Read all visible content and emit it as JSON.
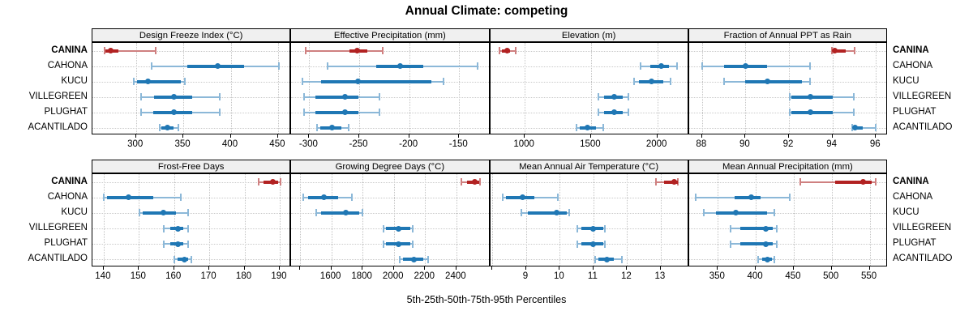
{
  "title": "Annual Climate: competing",
  "axis_caption": "5th-25th-50th-75th-95th Percentiles",
  "colors": {
    "highlight": "#b22222",
    "highlight_light": "#cf8080",
    "normal": "#1f77b4",
    "normal_light": "#8cb8d8",
    "strip_bg": "#f0f0f0",
    "panel_border": "#000000",
    "grid": "#c4c4c4"
  },
  "chart_data": {
    "type": "dotplot-percentiles",
    "title": "Annual Climate: competing",
    "xlabel": "5th-25th-50th-75th-95th Percentiles",
    "percentiles": [
      5,
      25,
      50,
      75,
      95
    ],
    "rows": [
      "CANINA",
      "CAHONA",
      "KUCU",
      "VILLEGREEN",
      "PLUGHAT",
      "ACANTILADO"
    ],
    "highlight": "CANINA",
    "grid": "dotted",
    "panels": [
      {
        "title": "Design Freeze Index (°C)",
        "xlim": [
          254,
          464
        ],
        "ticks": [
          {
            "v": 300,
            "l": "300"
          },
          {
            "v": 350,
            "l": "350"
          },
          {
            "v": 400,
            "l": "400"
          },
          {
            "v": 450,
            "l": "450"
          }
        ],
        "values": [
          [
            266,
            268,
            273,
            281,
            321
          ],
          [
            316,
            354,
            386,
            414,
            451
          ],
          [
            297,
            301,
            313,
            347,
            352
          ],
          [
            305,
            319,
            340,
            359,
            389
          ],
          [
            305,
            318,
            340,
            359,
            389
          ],
          [
            325,
            327,
            333,
            340,
            345
          ]
        ]
      },
      {
        "title": "Effective Precipitation (mm)",
        "xlim": [
          -318,
          -119
        ],
        "ticks": [
          {
            "v": -300,
            "l": "-300"
          },
          {
            "v": -250,
            "l": "-250"
          },
          {
            "v": -200,
            "l": "-200"
          },
          {
            "v": -150,
            "l": "-150"
          }
        ],
        "values": [
          [
            -304,
            -260,
            -252,
            -242,
            -226
          ],
          [
            -282,
            -233,
            -209,
            -186,
            -131
          ],
          [
            -307,
            -288,
            -251,
            -178,
            -165
          ],
          [
            -306,
            -294,
            -264,
            -251,
            -229
          ],
          [
            -306,
            -294,
            -264,
            -251,
            -229
          ],
          [
            -293,
            -289,
            -277,
            -268,
            -260
          ]
        ]
      },
      {
        "title": "Elevation (m)",
        "xlim": [
          739,
          2239
        ],
        "ticks": [
          {
            "v": 1000,
            "l": "1000"
          },
          {
            "v": 1500,
            "l": "1500"
          },
          {
            "v": 2000,
            "l": "2000"
          }
        ],
        "values": [
          [
            805,
            830,
            865,
            890,
            933
          ],
          [
            1870,
            1945,
            2030,
            2085,
            2150
          ],
          [
            1820,
            1860,
            1957,
            2045,
            2105
          ],
          [
            1555,
            1600,
            1675,
            1740,
            1785
          ],
          [
            1555,
            1600,
            1675,
            1740,
            1785
          ],
          [
            1390,
            1415,
            1470,
            1535,
            1595
          ]
        ]
      },
      {
        "title": "Fraction of Annual PPT as Rain",
        "xlim": [
          87.4,
          96.55
        ],
        "ticks": [
          {
            "v": 88,
            "l": "88"
          },
          {
            "v": 90,
            "l": "90"
          },
          {
            "v": 92,
            "l": "92"
          },
          {
            "v": 94,
            "l": "94"
          },
          {
            "v": 96,
            "l": "96"
          }
        ],
        "values": [
          [
            93.95,
            94.0,
            94.1,
            94.6,
            95.05
          ],
          [
            88.0,
            89.0,
            90.0,
            91.0,
            93.0
          ],
          [
            89.0,
            90.0,
            91.0,
            92.6,
            93.0
          ],
          [
            92.0,
            92.1,
            93.0,
            94.0,
            95.0
          ],
          [
            92.0,
            92.1,
            93.0,
            94.0,
            95.0
          ],
          [
            94.9,
            95.0,
            95.05,
            95.4,
            96.0
          ]
        ]
      },
      {
        "title": "Frost-Free Days",
        "xlim": [
          136.8,
          193.3
        ],
        "ticks": [
          {
            "v": 140,
            "l": "140"
          },
          {
            "v": 150,
            "l": "150"
          },
          {
            "v": 160,
            "l": "160"
          },
          {
            "v": 170,
            "l": "170"
          },
          {
            "v": 180,
            "l": "180"
          },
          {
            "v": 190,
            "l": "190"
          }
        ],
        "values": [
          [
            184,
            185.5,
            188,
            189.5,
            190.3
          ],
          [
            140,
            141,
            147,
            154,
            162
          ],
          [
            150,
            151,
            157,
            160.5,
            164
          ],
          [
            157,
            159,
            161,
            162.5,
            164
          ],
          [
            157,
            159,
            161,
            162.5,
            164
          ],
          [
            160,
            161,
            163,
            164,
            165
          ]
        ]
      },
      {
        "title": "Growing Degree Days (°C)",
        "xlim": [
          1344,
          2616
        ],
        "ticks": [
          {
            "v": 1400,
            "l": ""
          },
          {
            "v": 1600,
            "l": "1600"
          },
          {
            "v": 1800,
            "l": "1800"
          },
          {
            "v": 2000,
            "l": "2000"
          },
          {
            "v": 2200,
            "l": "2200"
          },
          {
            "v": 2400,
            "l": "2400"
          }
        ],
        "values": [
          [
            2430,
            2470,
            2520,
            2545,
            2555
          ],
          [
            1420,
            1450,
            1555,
            1645,
            1735
          ],
          [
            1500,
            1535,
            1695,
            1780,
            1800
          ],
          [
            1930,
            1950,
            2030,
            2105,
            2125
          ],
          [
            1930,
            1950,
            2030,
            2105,
            2125
          ],
          [
            2035,
            2060,
            2130,
            2190,
            2220
          ]
        ]
      },
      {
        "title": "Mean Annual Air Temperature (°C)",
        "xlim": [
          7.93,
          13.84
        ],
        "ticks": [
          {
            "v": 8,
            "l": ""
          },
          {
            "v": 9,
            "l": "9"
          },
          {
            "v": 10,
            "l": "10"
          },
          {
            "v": 11,
            "l": "11"
          },
          {
            "v": 12,
            "l": "12"
          },
          {
            "v": 13,
            "l": "13"
          }
        ],
        "values": [
          [
            12.85,
            13.1,
            13.4,
            13.5,
            13.53
          ],
          [
            8.3,
            8.4,
            8.9,
            9.25,
            9.95
          ],
          [
            8.85,
            9.05,
            9.9,
            10.2,
            10.3
          ],
          [
            10.5,
            10.65,
            11.0,
            11.3,
            11.35
          ],
          [
            10.5,
            10.65,
            11.0,
            11.3,
            11.35
          ],
          [
            11.05,
            11.15,
            11.4,
            11.6,
            11.85
          ]
        ]
      },
      {
        "title": "Mean Annual Precipitation (mm)",
        "xlim": [
          312,
          574
        ],
        "ticks": [
          {
            "v": 350,
            "l": "350"
          },
          {
            "v": 400,
            "l": "400"
          },
          {
            "v": 450,
            "l": "450"
          },
          {
            "v": 500,
            "l": "500"
          },
          {
            "v": 550,
            "l": "550"
          }
        ],
        "values": [
          [
            458,
            505,
            541,
            553,
            559
          ],
          [
            320,
            372,
            394,
            406,
            445
          ],
          [
            331,
            348,
            374,
            415,
            425
          ],
          [
            366,
            380,
            413,
            422,
            428
          ],
          [
            366,
            380,
            413,
            422,
            428
          ],
          [
            403,
            408,
            415,
            421,
            425
          ]
        ]
      }
    ]
  }
}
